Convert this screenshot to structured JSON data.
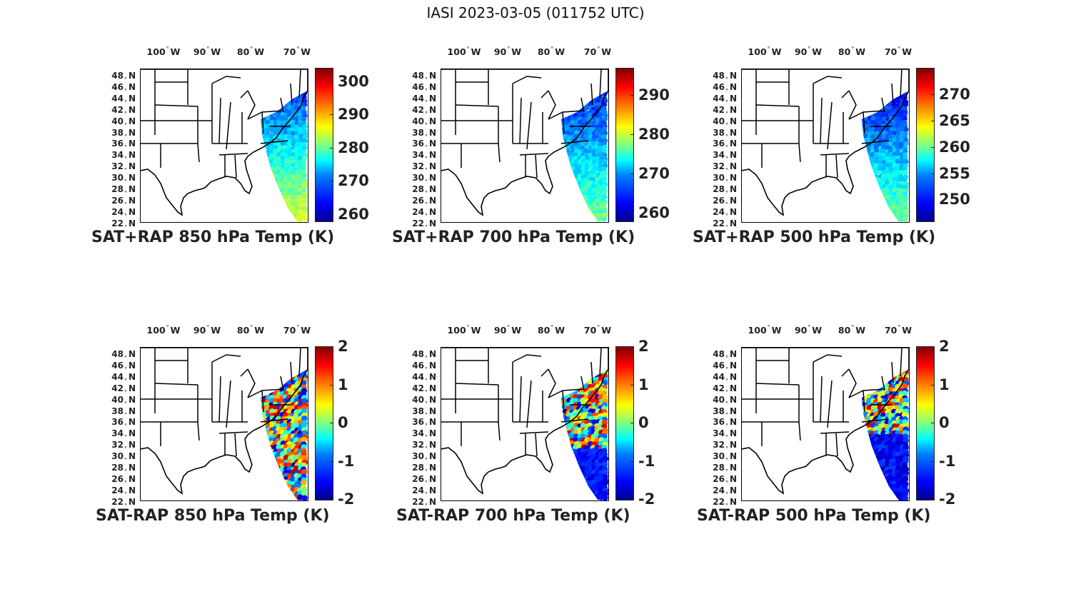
{
  "page_title": "IASI 2023-03-05 (011752 UTC)",
  "deg_symbol": "°",
  "lon_labels": [
    {
      "deg": "100",
      "hemi": "W"
    },
    {
      "deg": "90",
      "hemi": "W"
    },
    {
      "deg": "80",
      "hemi": "W"
    },
    {
      "deg": "70",
      "hemi": "W"
    }
  ],
  "lat_labels": [
    {
      "deg": "48",
      "hemi": "N"
    },
    {
      "deg": "46",
      "hemi": "N"
    },
    {
      "deg": "44",
      "hemi": "N"
    },
    {
      "deg": "42",
      "hemi": "N"
    },
    {
      "deg": "40",
      "hemi": "N"
    },
    {
      "deg": "38",
      "hemi": "N"
    },
    {
      "deg": "36",
      "hemi": "N"
    },
    {
      "deg": "34",
      "hemi": "N"
    },
    {
      "deg": "32",
      "hemi": "N"
    },
    {
      "deg": "30",
      "hemi": "N"
    },
    {
      "deg": "28",
      "hemi": "N"
    },
    {
      "deg": "26",
      "hemi": "N"
    },
    {
      "deg": "24",
      "hemi": "N"
    },
    {
      "deg": "22",
      "hemi": "N"
    }
  ],
  "colormap": "jet",
  "panels": [
    {
      "title": "SAT+RAP 850 hPa Temp (K)",
      "kind": "total",
      "colorbar": {
        "min": 258,
        "max": 304,
        "ticks": [
          "300",
          "290",
          "280",
          "270",
          "260"
        ],
        "tick_values": [
          300,
          290,
          280,
          270,
          260
        ]
      }
    },
    {
      "title": "SAT+RAP 700 hPa Temp (K)",
      "kind": "total",
      "colorbar": {
        "min": 258,
        "max": 297,
        "ticks": [
          "290",
          "280",
          "270",
          "260"
        ],
        "tick_values": [
          290,
          280,
          270,
          260
        ]
      }
    },
    {
      "title": "SAT+RAP 500 hPa Temp (K)",
      "kind": "total",
      "colorbar": {
        "min": 246,
        "max": 275,
        "ticks": [
          "270",
          "265",
          "260",
          "255",
          "250"
        ],
        "tick_values": [
          270,
          265,
          260,
          255,
          250
        ]
      }
    },
    {
      "title": "SAT-RAP 850 hPa Temp (K)",
      "kind": "diff",
      "colorbar": {
        "min": -2,
        "max": 2,
        "ticks": [
          "2",
          "1",
          "0",
          "-1",
          "-2"
        ],
        "tick_values": [
          2,
          1,
          0,
          -1,
          -2
        ]
      }
    },
    {
      "title": "SAT-RAP 700 hPa Temp (K)",
      "kind": "diff",
      "colorbar": {
        "min": -2,
        "max": 2,
        "ticks": [
          "2",
          "1",
          "0",
          "-1",
          "-2"
        ],
        "tick_values": [
          2,
          1,
          0,
          -1,
          -2
        ]
      }
    },
    {
      "title": "SAT-RAP 500 hPa Temp (K)",
      "kind": "diff",
      "colorbar": {
        "min": -2,
        "max": 2,
        "ticks": [
          "2",
          "1",
          "0",
          "-1",
          "-2"
        ],
        "tick_values": [
          2,
          1,
          0,
          -1,
          -2
        ]
      }
    }
  ]
}
